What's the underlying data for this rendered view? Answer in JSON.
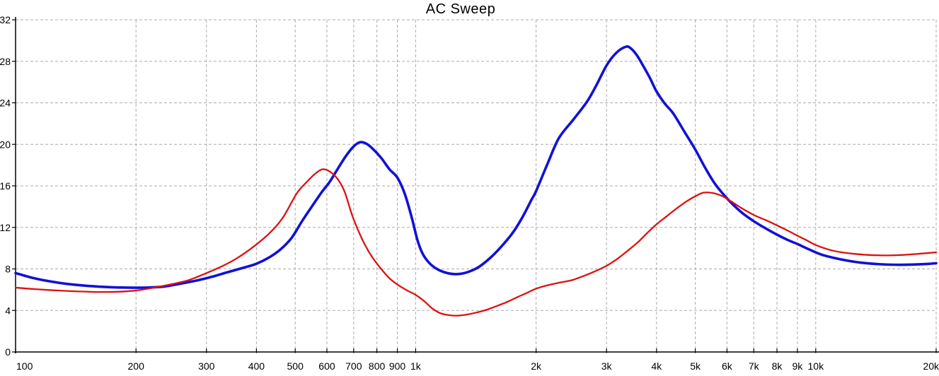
{
  "chart_data": {
    "type": "line",
    "title": "AC Sweep",
    "x_scale": "log",
    "x_range": [
      100,
      20000
    ],
    "y_range": [
      0,
      32
    ],
    "grid": "dashed",
    "legend": "none",
    "colors": {
      "blue_trace": "#1111d6",
      "red_trace": "#dd1111",
      "grid": "#ababab",
      "axis": "#000000",
      "background": "#ffffff",
      "text": "#000000"
    },
    "x_ticks": [
      {
        "value": 100,
        "label": "100"
      },
      {
        "value": 200,
        "label": "200"
      },
      {
        "value": 300,
        "label": "300"
      },
      {
        "value": 400,
        "label": "400"
      },
      {
        "value": 500,
        "label": "500"
      },
      {
        "value": 600,
        "label": "600"
      },
      {
        "value": 700,
        "label": "700"
      },
      {
        "value": 800,
        "label": "800"
      },
      {
        "value": 900,
        "label": "900"
      },
      {
        "value": 1000,
        "label": "1k"
      },
      {
        "value": 2000,
        "label": "2k"
      },
      {
        "value": 3000,
        "label": "3k"
      },
      {
        "value": 4000,
        "label": "4k"
      },
      {
        "value": 5000,
        "label": "5k"
      },
      {
        "value": 6000,
        "label": "6k"
      },
      {
        "value": 7000,
        "label": "7k"
      },
      {
        "value": 8000,
        "label": "8k"
      },
      {
        "value": 9000,
        "label": "9k"
      },
      {
        "value": 10000,
        "label": "10k"
      },
      {
        "value": 20000,
        "label": "20k"
      }
    ],
    "y_ticks": [
      {
        "value": 0,
        "label": "0"
      },
      {
        "value": 4,
        "label": "4"
      },
      {
        "value": 8,
        "label": "8"
      },
      {
        "value": 12,
        "label": "12"
      },
      {
        "value": 16,
        "label": "16"
      },
      {
        "value": 20,
        "label": "20"
      },
      {
        "value": 24,
        "label": "24"
      },
      {
        "value": 28,
        "label": "28"
      },
      {
        "value": 32,
        "label": "32"
      }
    ],
    "series": [
      {
        "name": "blue-trace",
        "color": "#1111d6",
        "stroke_width": 3.6,
        "points": [
          [
            100,
            7.6
          ],
          [
            110,
            7.15
          ],
          [
            122,
            6.8
          ],
          [
            135,
            6.55
          ],
          [
            150,
            6.38
          ],
          [
            170,
            6.25
          ],
          [
            190,
            6.2
          ],
          [
            212,
            6.2
          ],
          [
            235,
            6.3
          ],
          [
            260,
            6.6
          ],
          [
            285,
            6.9
          ],
          [
            310,
            7.25
          ],
          [
            340,
            7.7
          ],
          [
            370,
            8.1
          ],
          [
            400,
            8.5
          ],
          [
            430,
            9.1
          ],
          [
            460,
            9.9
          ],
          [
            490,
            11.0
          ],
          [
            520,
            12.6
          ],
          [
            550,
            14.0
          ],
          [
            580,
            15.3
          ],
          [
            610,
            16.4
          ],
          [
            640,
            17.7
          ],
          [
            670,
            18.9
          ],
          [
            700,
            19.8
          ],
          [
            725,
            20.2
          ],
          [
            750,
            20.1
          ],
          [
            780,
            19.6
          ],
          [
            820,
            18.7
          ],
          [
            860,
            17.6
          ],
          [
            900,
            16.8
          ],
          [
            940,
            15.2
          ],
          [
            980,
            12.8
          ],
          [
            1010,
            10.8
          ],
          [
            1040,
            9.5
          ],
          [
            1080,
            8.6
          ],
          [
            1130,
            8.0
          ],
          [
            1200,
            7.6
          ],
          [
            1270,
            7.5
          ],
          [
            1350,
            7.7
          ],
          [
            1440,
            8.2
          ],
          [
            1550,
            9.2
          ],
          [
            1650,
            10.3
          ],
          [
            1750,
            11.5
          ],
          [
            1850,
            13.0
          ],
          [
            1950,
            14.7
          ],
          [
            2000,
            15.5
          ],
          [
            2140,
            18.2
          ],
          [
            2280,
            20.6
          ],
          [
            2480,
            22.4
          ],
          [
            2680,
            24.1
          ],
          [
            2830,
            25.7
          ],
          [
            3000,
            27.6
          ],
          [
            3170,
            28.8
          ],
          [
            3350,
            29.4
          ],
          [
            3450,
            29.25
          ],
          [
            3570,
            28.6
          ],
          [
            3700,
            27.6
          ],
          [
            3850,
            26.4
          ],
          [
            4000,
            25.1
          ],
          [
            4200,
            23.9
          ],
          [
            4400,
            23.0
          ],
          [
            4700,
            21.2
          ],
          [
            5000,
            19.5
          ],
          [
            5300,
            17.7
          ],
          [
            5600,
            16.2
          ],
          [
            6000,
            14.8
          ],
          [
            6500,
            13.5
          ],
          [
            7000,
            12.6
          ],
          [
            7500,
            11.9
          ],
          [
            8000,
            11.3
          ],
          [
            8500,
            10.8
          ],
          [
            9000,
            10.4
          ],
          [
            9600,
            9.9
          ],
          [
            10300,
            9.4
          ],
          [
            11000,
            9.1
          ],
          [
            12000,
            8.8
          ],
          [
            13000,
            8.6
          ],
          [
            14500,
            8.45
          ],
          [
            16000,
            8.4
          ],
          [
            17500,
            8.42
          ],
          [
            19000,
            8.48
          ],
          [
            20000,
            8.55
          ]
        ]
      },
      {
        "name": "red-trace",
        "color": "#dd1111",
        "stroke_width": 2.3,
        "points": [
          [
            100,
            6.2
          ],
          [
            112,
            6.05
          ],
          [
            126,
            5.93
          ],
          [
            142,
            5.84
          ],
          [
            160,
            5.78
          ],
          [
            180,
            5.8
          ],
          [
            200,
            5.92
          ],
          [
            222,
            6.2
          ],
          [
            247,
            6.55
          ],
          [
            272,
            6.95
          ],
          [
            300,
            7.6
          ],
          [
            330,
            8.3
          ],
          [
            360,
            9.1
          ],
          [
            395,
            10.2
          ],
          [
            430,
            11.4
          ],
          [
            465,
            12.9
          ],
          [
            505,
            15.3
          ],
          [
            535,
            16.4
          ],
          [
            560,
            17.15
          ],
          [
            585,
            17.6
          ],
          [
            612,
            17.35
          ],
          [
            640,
            16.6
          ],
          [
            665,
            15.4
          ],
          [
            692,
            13.3
          ],
          [
            715,
            11.9
          ],
          [
            745,
            10.4
          ],
          [
            780,
            9.1
          ],
          [
            820,
            8.0
          ],
          [
            860,
            7.1
          ],
          [
            900,
            6.5
          ],
          [
            950,
            5.95
          ],
          [
            1000,
            5.5
          ],
          [
            1050,
            4.9
          ],
          [
            1100,
            4.2
          ],
          [
            1150,
            3.75
          ],
          [
            1210,
            3.55
          ],
          [
            1270,
            3.5
          ],
          [
            1340,
            3.6
          ],
          [
            1420,
            3.8
          ],
          [
            1500,
            4.05
          ],
          [
            1600,
            4.45
          ],
          [
            1700,
            4.85
          ],
          [
            1800,
            5.3
          ],
          [
            1900,
            5.7
          ],
          [
            2000,
            6.1
          ],
          [
            2150,
            6.45
          ],
          [
            2300,
            6.7
          ],
          [
            2450,
            6.9
          ],
          [
            2600,
            7.25
          ],
          [
            2800,
            7.75
          ],
          [
            3000,
            8.3
          ],
          [
            3200,
            9.0
          ],
          [
            3400,
            9.8
          ],
          [
            3600,
            10.6
          ],
          [
            3800,
            11.5
          ],
          [
            4000,
            12.3
          ],
          [
            4250,
            13.1
          ],
          [
            4500,
            13.85
          ],
          [
            4750,
            14.5
          ],
          [
            5000,
            15.0
          ],
          [
            5250,
            15.35
          ],
          [
            5550,
            15.3
          ],
          [
            5850,
            15.0
          ],
          [
            6150,
            14.5
          ],
          [
            6500,
            13.9
          ],
          [
            7000,
            13.2
          ],
          [
            7500,
            12.7
          ],
          [
            8000,
            12.2
          ],
          [
            8500,
            11.7
          ],
          [
            9000,
            11.2
          ],
          [
            9500,
            10.75
          ],
          [
            10000,
            10.3
          ],
          [
            10800,
            9.85
          ],
          [
            11600,
            9.6
          ],
          [
            12500,
            9.45
          ],
          [
            13500,
            9.35
          ],
          [
            15000,
            9.3
          ],
          [
            16500,
            9.35
          ],
          [
            18000,
            9.45
          ],
          [
            20000,
            9.6
          ]
        ]
      }
    ]
  }
}
